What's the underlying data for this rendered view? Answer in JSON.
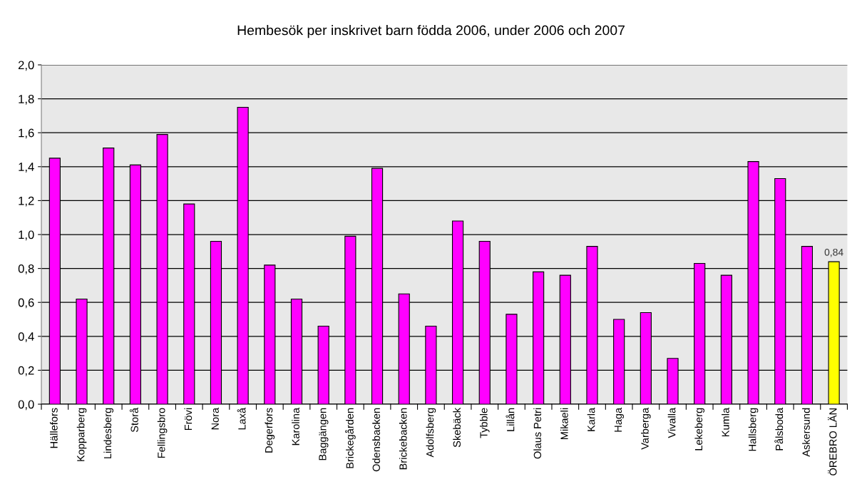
{
  "chart_data": {
    "type": "bar",
    "title": "Hembesök per inskrivet barn födda 2006, under 2006 och 2007",
    "categories": [
      "Hällefors",
      "Kopparberg",
      "Lindesberg",
      "Storå",
      "Fellingsbro",
      "Frövi",
      "Nora",
      "Laxå",
      "Degerfors",
      "Karolina",
      "Baggängen",
      "Brickegården",
      "Odensbacken",
      "Brickebacken",
      "Adolfsberg",
      "Skebäck",
      "Tybble",
      "Lillån",
      "Olaus Petri",
      "Mikaeli",
      "Karla",
      "Haga",
      "Varberga",
      "Vivalla",
      "Lekeberg",
      "Kumla",
      "Hallsberg",
      "Pålsboda",
      "Askersund",
      "ÖREBRO LÄN"
    ],
    "values": [
      1.45,
      0.62,
      1.51,
      1.41,
      1.59,
      1.18,
      0.96,
      1.75,
      0.82,
      0.62,
      0.46,
      0.99,
      1.39,
      0.65,
      0.46,
      1.08,
      0.96,
      0.53,
      0.78,
      0.76,
      0.93,
      0.5,
      0.54,
      0.27,
      0.83,
      0.76,
      1.43,
      1.33,
      0.93,
      0.84
    ],
    "colors": [
      "#ff00ff",
      "#ff00ff",
      "#ff00ff",
      "#ff00ff",
      "#ff00ff",
      "#ff00ff",
      "#ff00ff",
      "#ff00ff",
      "#ff00ff",
      "#ff00ff",
      "#ff00ff",
      "#ff00ff",
      "#ff00ff",
      "#ff00ff",
      "#ff00ff",
      "#ff00ff",
      "#ff00ff",
      "#ff00ff",
      "#ff00ff",
      "#ff00ff",
      "#ff00ff",
      "#ff00ff",
      "#ff00ff",
      "#ff00ff",
      "#ff00ff",
      "#ff00ff",
      "#ff00ff",
      "#ff00ff",
      "#ff00ff",
      "#ffff00"
    ],
    "value_labels": [
      null,
      null,
      null,
      null,
      null,
      null,
      null,
      null,
      null,
      null,
      null,
      null,
      null,
      null,
      null,
      null,
      null,
      null,
      null,
      null,
      null,
      null,
      null,
      null,
      null,
      null,
      null,
      null,
      null,
      "0,84"
    ],
    "ylim": [
      0,
      2.0
    ],
    "yticks": [
      {
        "value": 0,
        "label": "0,0"
      },
      {
        "value": 0.2,
        "label": "0,2"
      },
      {
        "value": 0.4,
        "label": "0,4"
      },
      {
        "value": 0.6,
        "label": "0,6"
      },
      {
        "value": 0.8,
        "label": "0,8"
      },
      {
        "value": 1.0,
        "label": "1,0"
      },
      {
        "value": 1.2,
        "label": "1,2"
      },
      {
        "value": 1.4,
        "label": "1,4"
      },
      {
        "value": 1.6,
        "label": "1,6"
      },
      {
        "value": 1.8,
        "label": "1,8"
      },
      {
        "value": 2.0,
        "label": "2,0"
      }
    ],
    "grid": "y"
  }
}
